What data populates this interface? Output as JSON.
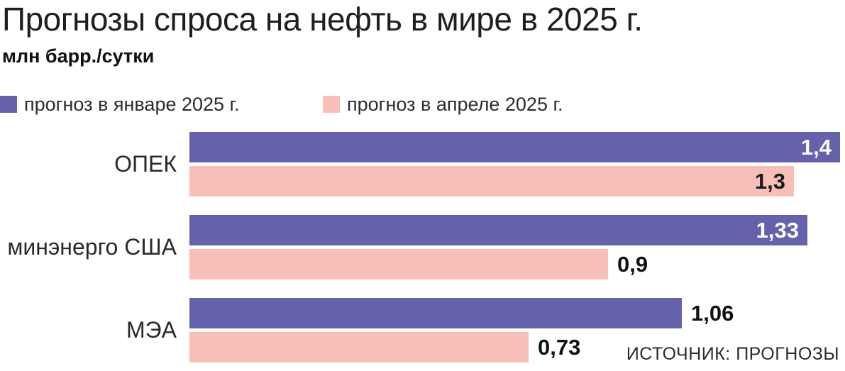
{
  "header": {
    "title": "Прогнозы спроса на нефть в мире в 2025 г.",
    "unit": "млн барр./сутки"
  },
  "legend": {
    "items": [
      {
        "key": "january",
        "label": "прогноз в январе 2025 г.",
        "color": "#6561ab"
      },
      {
        "key": "april",
        "label": "прогноз в апреле 2025 г.",
        "color": "#f7bfb8"
      }
    ]
  },
  "source": "ИСТОЧНИК: ПРОГНОЗЫ",
  "chart_data": {
    "type": "bar",
    "orientation": "horizontal",
    "title": "Прогнозы спроса на нефть в мире в 2025 г.",
    "xlabel": "млн барр./сутки",
    "ylabel": "",
    "xlim": [
      0,
      1.41
    ],
    "grid": false,
    "legend_position": "top",
    "categories": [
      "ОПЕК",
      "минэнерго США",
      "МЭА"
    ],
    "series": [
      {
        "name": "прогноз в январе 2025 г.",
        "color": "#6561ab",
        "values": [
          1.4,
          1.33,
          1.06
        ],
        "value_labels": [
          "1,4",
          "1,33",
          "1,06"
        ],
        "label_placement": [
          "inside",
          "inside",
          "outside"
        ],
        "inside_label_color": "#ffffff"
      },
      {
        "name": "прогноз в апреле 2025 г.",
        "color": "#f7bfb8",
        "values": [
          1.3,
          0.9,
          0.73
        ],
        "value_labels": [
          "1,3",
          "0,9",
          "0,73"
        ],
        "label_placement": [
          "inside",
          "outside",
          "outside"
        ],
        "inside_label_color": "#1a1a1a"
      }
    ]
  }
}
